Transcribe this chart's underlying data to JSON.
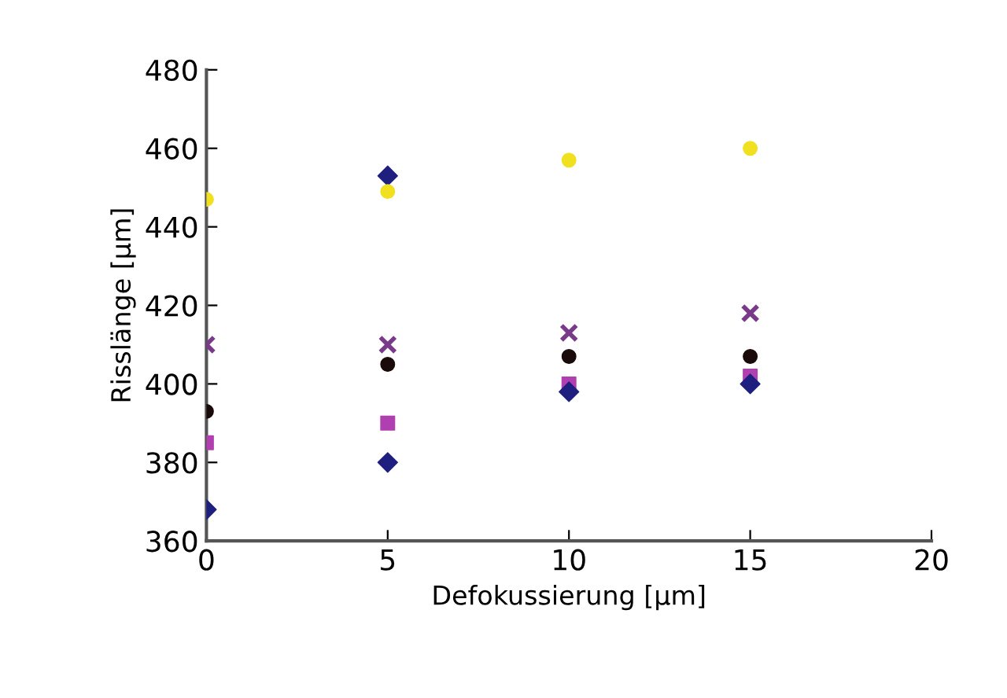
{
  "chart_data": {
    "type": "scatter",
    "xlabel": "Defokussierung [µm]",
    "ylabel": "Risslänge [µm]",
    "x": [
      0,
      5,
      10,
      15
    ],
    "xlim": [
      0,
      20
    ],
    "xticks": [
      0,
      5,
      10,
      15,
      20
    ],
    "ylim": [
      360,
      480
    ],
    "yticks": [
      360,
      380,
      400,
      420,
      440,
      460,
      480
    ],
    "grid": false,
    "legend": false,
    "series": [
      {
        "color": "#1f1f80",
        "marker": "diamond",
        "values": [
          null,
          453,
          null,
          null
        ]
      },
      {
        "color": "#f0e020",
        "marker": "circle",
        "values": [
          447,
          449,
          457,
          460
        ]
      },
      {
        "color": "#7a3a8a",
        "marker": "cross",
        "values": [
          410,
          410,
          413,
          418
        ]
      },
      {
        "color": "#1a0a0a",
        "marker": "circle",
        "values": [
          393,
          405,
          407,
          407
        ]
      },
      {
        "color": "#b040b0",
        "marker": "square",
        "values": [
          385,
          390,
          400,
          402
        ]
      },
      {
        "color": "#1f1f80",
        "marker": "diamond",
        "values": [
          368,
          380,
          398,
          400
        ]
      }
    ]
  }
}
